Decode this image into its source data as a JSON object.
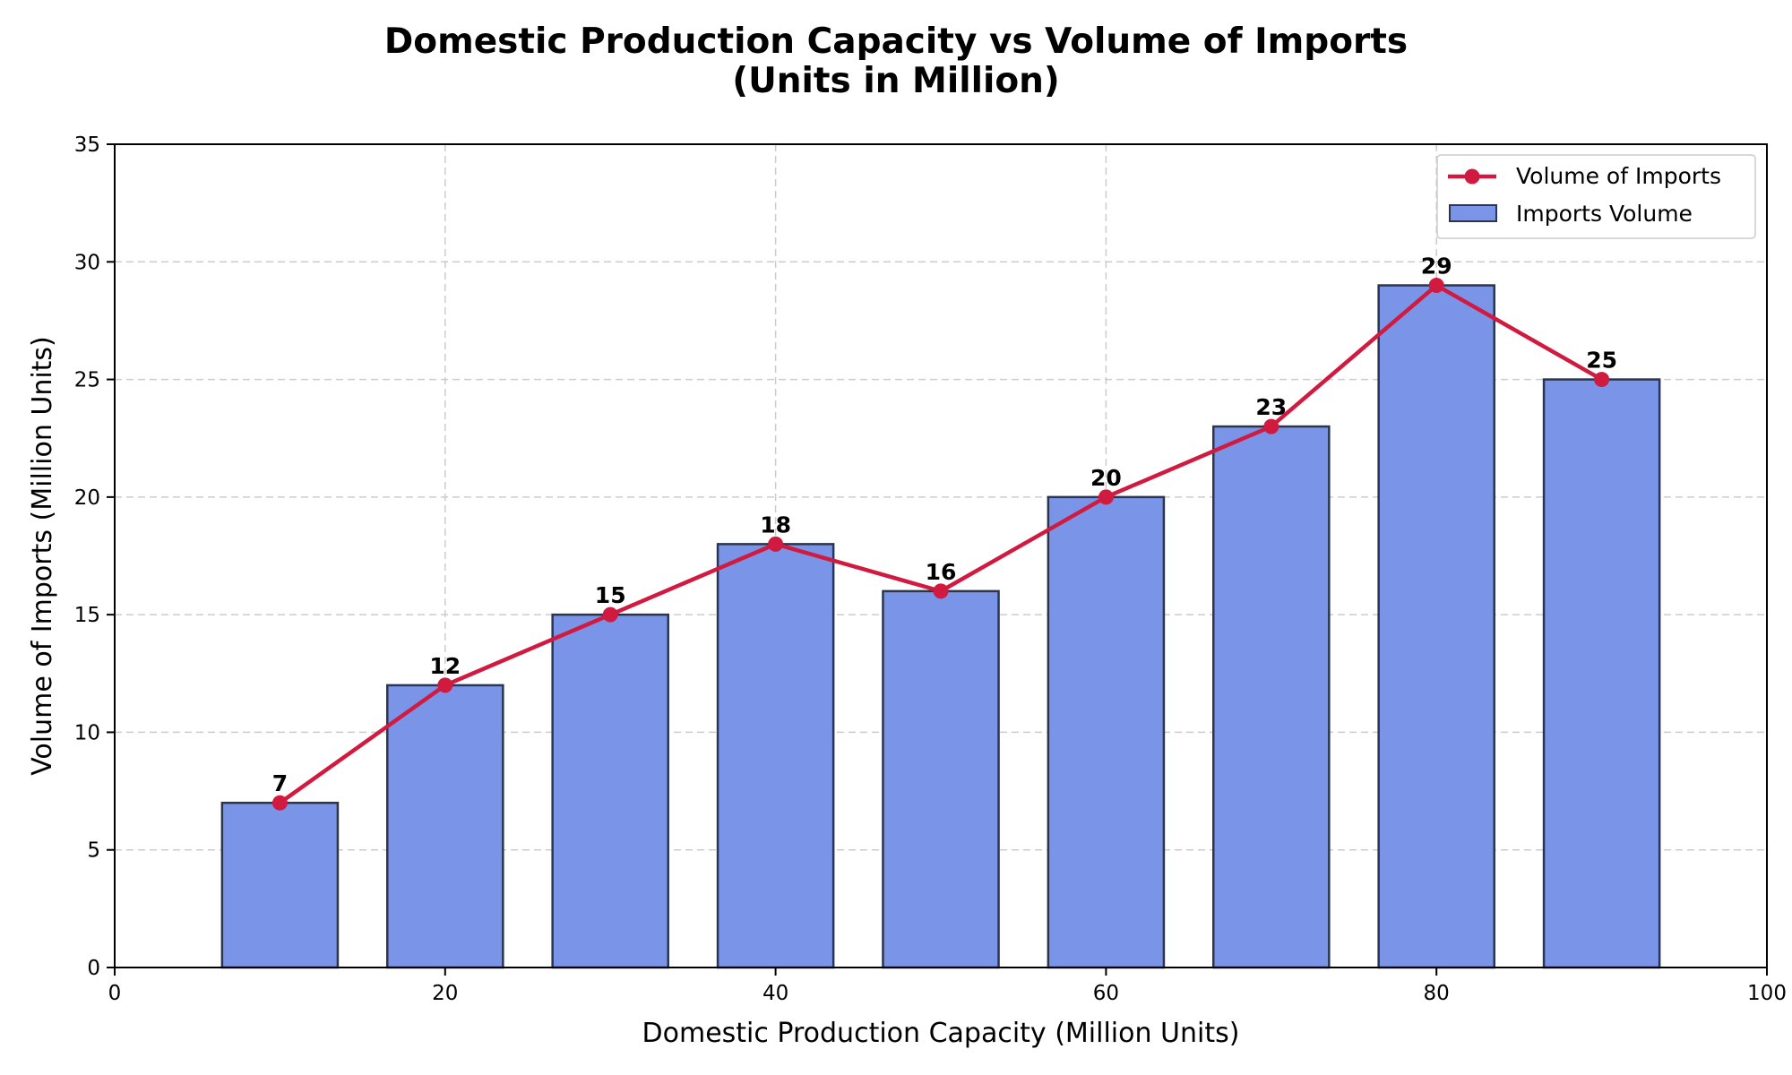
{
  "chart_data": {
    "type": "bar",
    "title_line1": "Domestic Production Capacity vs Volume of Imports",
    "title_line2": "(Units in Million)",
    "xlabel": "Domestic Production Capacity (Million Units)",
    "ylabel": "Volume of Imports (Million Units)",
    "xlim": [
      0,
      100
    ],
    "ylim": [
      0,
      35
    ],
    "xticks": [
      0,
      20,
      40,
      60,
      80,
      100
    ],
    "yticks": [
      0,
      5,
      10,
      15,
      20,
      25,
      30,
      35
    ],
    "grid": true,
    "legend_position": "top-right",
    "bar_width": 7,
    "x": [
      10,
      20,
      30,
      40,
      50,
      60,
      70,
      80,
      90
    ],
    "series": [
      {
        "name": "Volume of Imports",
        "type": "line",
        "color": "#d11a3f",
        "values": [
          7,
          12,
          15,
          18,
          16,
          20,
          23,
          29,
          25
        ]
      },
      {
        "name": "Imports Volume",
        "type": "bar",
        "color": "#7a95e8",
        "edge_color": "#2b3550",
        "values": [
          7,
          12,
          15,
          18,
          16,
          20,
          23,
          29,
          25
        ]
      }
    ],
    "data_labels": [
      "7",
      "12",
      "15",
      "18",
      "16",
      "20",
      "23",
      "29",
      "25"
    ]
  }
}
